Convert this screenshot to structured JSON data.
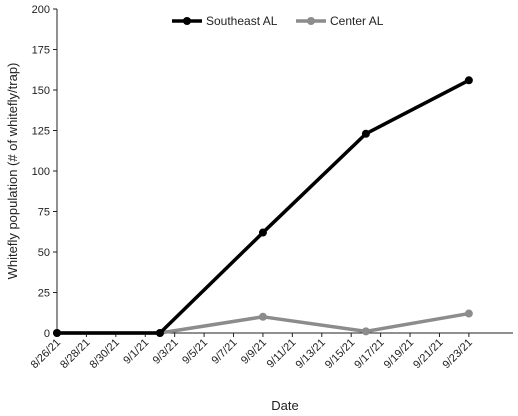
{
  "chart_data": {
    "type": "line",
    "xlabel": "Date",
    "ylabel": "Whitefly population (# of whitefly/trap)",
    "ylim": [
      0,
      200
    ],
    "yticks": [
      0,
      25,
      50,
      75,
      100,
      125,
      150,
      175,
      200
    ],
    "categories": [
      "8/26/21",
      "8/28/21",
      "8/30/21",
      "9/1/21",
      "9/3/21",
      "9/5/21",
      "9/7/21",
      "9/9/21",
      "9/11/21",
      "9/13/21",
      "9/15/21",
      "9/17/21",
      "9/19/21",
      "9/21/21",
      "9/23/21"
    ],
    "legend_position": "top-center",
    "grid": false,
    "series": [
      {
        "name": "Southeast AL",
        "color": "#000000",
        "points": [
          {
            "x": "8/26/21",
            "y": 0
          },
          {
            "x": "9/2/21",
            "y": 0
          },
          {
            "x": "9/9/21",
            "y": 62
          },
          {
            "x": "9/16/21",
            "y": 123
          },
          {
            "x": "9/23/21",
            "y": 156
          }
        ]
      },
      {
        "name": "Center AL",
        "color": "#8c8c8c",
        "points": [
          {
            "x": "8/26/21",
            "y": 0
          },
          {
            "x": "9/2/21",
            "y": 0
          },
          {
            "x": "9/9/21",
            "y": 10
          },
          {
            "x": "9/16/21",
            "y": 1
          },
          {
            "x": "9/23/21",
            "y": 12
          }
        ]
      }
    ]
  }
}
